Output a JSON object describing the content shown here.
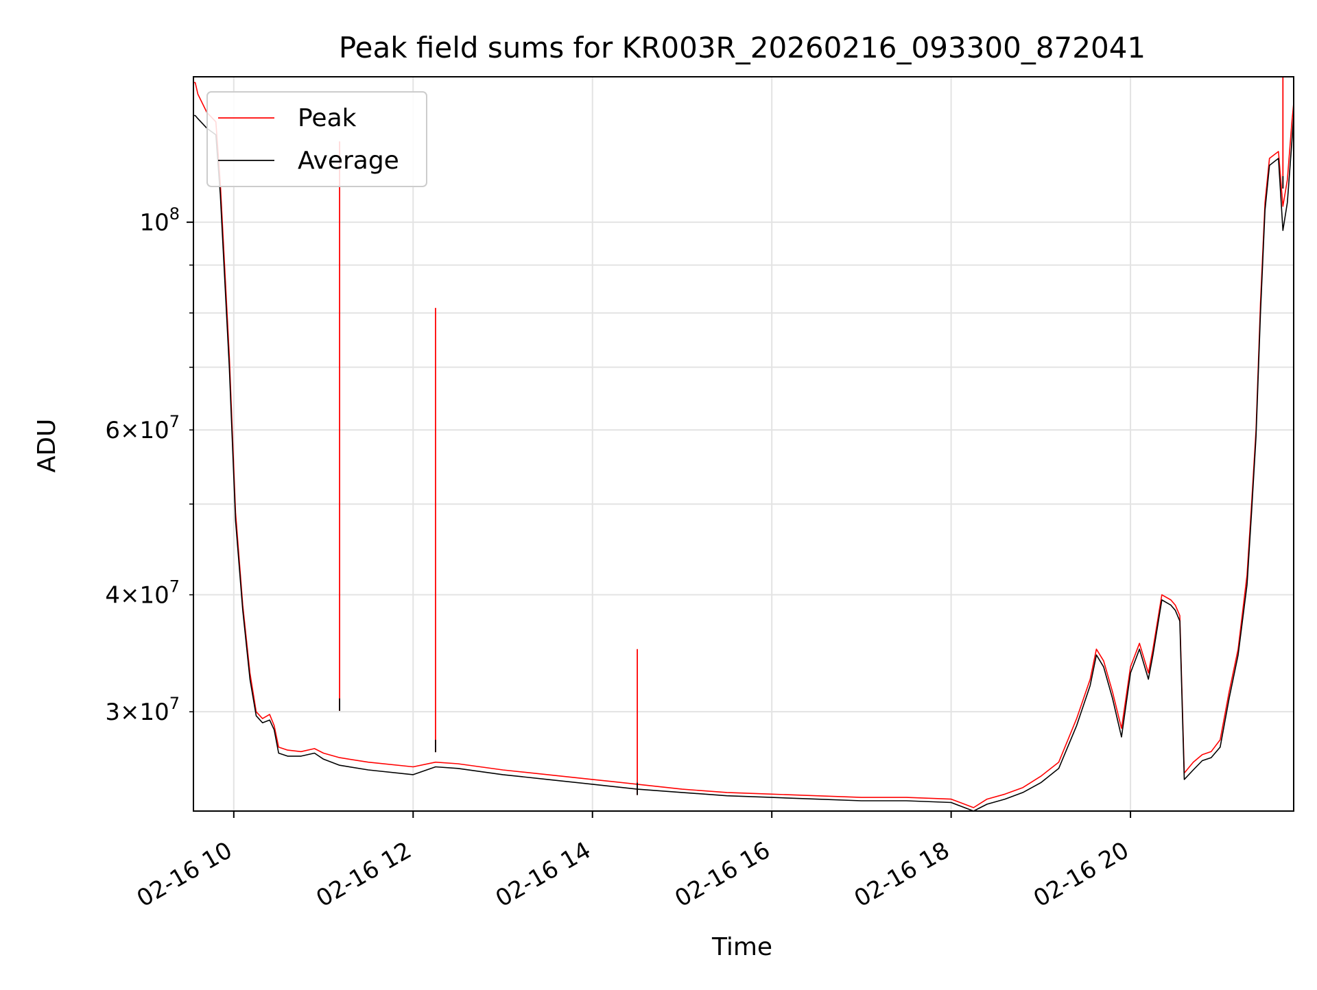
{
  "chart_data": {
    "type": "line",
    "title": "Peak field sums for KR003R_20260216_093300_872041",
    "xlabel": "Time",
    "ylabel": "ADU",
    "x_unit": "hours since 2026-02-16 00:00",
    "xlim": [
      9.55,
      21.82
    ],
    "ylim": [
      23500000,
      143000000
    ],
    "y_scale": "log",
    "grid": true,
    "legend_position": "upper-left",
    "x_ticks": [
      {
        "value": 10,
        "label": "02-16 10"
      },
      {
        "value": 12,
        "label": "02-16 12"
      },
      {
        "value": 14,
        "label": "02-16 14"
      },
      {
        "value": 16,
        "label": "02-16 16"
      },
      {
        "value": 18,
        "label": "02-16 18"
      },
      {
        "value": 20,
        "label": "02-16 20"
      }
    ],
    "y_major_ticks": [
      {
        "value": 100000000,
        "base": "10",
        "exp": "8"
      }
    ],
    "y_minor_ticks": [
      {
        "value": 30000000,
        "mant": "3",
        "exp": "7"
      },
      {
        "value": 40000000,
        "mant": "4",
        "exp": "7"
      },
      {
        "value": 60000000,
        "mant": "6",
        "exp": "7"
      }
    ],
    "y_minor_unlabeled": [
      20000000,
      50000000,
      70000000,
      80000000,
      90000000
    ],
    "series": [
      {
        "name": "Peak",
        "color": "#ff0000",
        "x": [
          9.55,
          9.57,
          9.6,
          9.7,
          9.8,
          9.85,
          9.95,
          10.02,
          10.1,
          10.18,
          10.25,
          10.32,
          10.4,
          10.45,
          10.5,
          10.6,
          10.75,
          10.9,
          11.0,
          11.18,
          11.5,
          12.0,
          12.25,
          12.5,
          13.0,
          13.5,
          14.0,
          14.5,
          15.0,
          15.5,
          16.0,
          16.5,
          17.0,
          17.5,
          18.0,
          18.1,
          18.25,
          18.4,
          18.6,
          18.8,
          19.0,
          19.2,
          19.4,
          19.55,
          19.62,
          19.7,
          19.8,
          19.9,
          20.0,
          20.1,
          20.2,
          20.25,
          20.35,
          20.45,
          20.5,
          20.55,
          20.6,
          20.7,
          20.8,
          20.9,
          21.0,
          21.1,
          21.2,
          21.3,
          21.35,
          21.4,
          21.45,
          21.5,
          21.55,
          21.6,
          21.65,
          21.7,
          21.75,
          21.8,
          21.82
        ],
        "y": [
          141000000,
          141000000,
          137000000,
          131000000,
          128000000,
          110000000,
          72000000,
          49000000,
          39000000,
          33000000,
          30000000,
          29500000,
          29800000,
          29000000,
          27500000,
          27300000,
          27200000,
          27400000,
          27100000,
          26800000,
          26500000,
          26200000,
          26500000,
          26400000,
          26000000,
          25700000,
          25400000,
          25100000,
          24800000,
          24600000,
          24500000,
          24400000,
          24300000,
          24300000,
          24200000,
          24000000,
          23700000,
          24200000,
          24500000,
          24900000,
          25600000,
          26500000,
          29500000,
          32500000,
          35000000,
          34000000,
          31500000,
          28800000,
          33500000,
          35500000,
          33000000,
          35000000,
          40000000,
          39500000,
          39000000,
          38000000,
          25800000,
          26500000,
          27000000,
          27200000,
          28000000,
          31500000,
          35000000,
          42000000,
          50000000,
          60000000,
          82000000,
          105000000,
          117000000,
          118000000,
          119000000,
          104000000,
          111000000,
          128000000,
          134000000
        ]
      },
      {
        "name": "Average",
        "color": "#000000",
        "x": [
          9.55,
          9.57,
          9.6,
          9.7,
          9.8,
          9.85,
          9.95,
          10.02,
          10.1,
          10.18,
          10.25,
          10.32,
          10.4,
          10.45,
          10.5,
          10.6,
          10.75,
          10.9,
          11.0,
          11.18,
          11.5,
          12.0,
          12.25,
          12.5,
          13.0,
          13.5,
          14.0,
          14.5,
          15.0,
          15.5,
          16.0,
          16.5,
          17.0,
          17.5,
          18.0,
          18.1,
          18.25,
          18.4,
          18.6,
          18.8,
          19.0,
          19.2,
          19.4,
          19.55,
          19.62,
          19.7,
          19.8,
          19.9,
          20.0,
          20.1,
          20.2,
          20.25,
          20.35,
          20.45,
          20.5,
          20.55,
          20.6,
          20.7,
          20.8,
          20.9,
          21.0,
          21.1,
          21.2,
          21.3,
          21.35,
          21.4,
          21.45,
          21.5,
          21.55,
          21.6,
          21.65,
          21.7,
          21.75,
          21.8,
          21.82
        ],
        "y": [
          130000000,
          130000000,
          129000000,
          126000000,
          124000000,
          107000000,
          70000000,
          48000000,
          38500000,
          32500000,
          29700000,
          29200000,
          29400000,
          28700000,
          27100000,
          26900000,
          26900000,
          27100000,
          26700000,
          26300000,
          26000000,
          25700000,
          26200000,
          26100000,
          25700000,
          25400000,
          25100000,
          24800000,
          24600000,
          24400000,
          24300000,
          24200000,
          24100000,
          24100000,
          24000000,
          23800000,
          23500000,
          23900000,
          24200000,
          24600000,
          25200000,
          26100000,
          29000000,
          32000000,
          34500000,
          33500000,
          31000000,
          28200000,
          33000000,
          35000000,
          32500000,
          34500000,
          39500000,
          39000000,
          38500000,
          37500000,
          25400000,
          26000000,
          26600000,
          26800000,
          27500000,
          31000000,
          34500000,
          41000000,
          49000000,
          59000000,
          80000000,
          103000000,
          115000000,
          116000000,
          117000000,
          98000000,
          105000000,
          122000000,
          130000000
        ]
      }
    ],
    "peak_spikes": [
      {
        "x": 11.18,
        "peak": 122000000,
        "average": 31000000
      },
      {
        "x": 12.25,
        "peak": 81000000,
        "average": 28000000
      },
      {
        "x": 14.5,
        "peak": 35000000,
        "average": 25200000
      },
      {
        "x": 21.7,
        "peak": 143000000,
        "average": 112000000
      }
    ]
  }
}
